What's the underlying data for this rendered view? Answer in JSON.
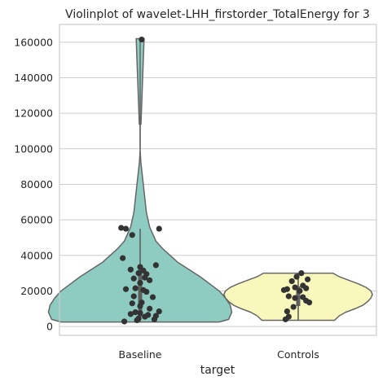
{
  "chart_data": {
    "type": "violin",
    "title": "Violinplot of wavelet-LHH_firstorder_TotalEnergy for 3",
    "xlabel": "target",
    "ylabel": "",
    "ylim": [
      -5000,
      170000
    ],
    "yticks": [
      0,
      20000,
      40000,
      60000,
      80000,
      100000,
      120000,
      140000,
      160000
    ],
    "ytick_labels": [
      "0",
      "20000",
      "40000",
      "60000",
      "80000",
      "100000",
      "120000",
      "140000",
      "160000"
    ],
    "grid": true,
    "categories": [
      "Baseline",
      "Controls"
    ],
    "series": [
      {
        "name": "Baseline",
        "color": "#8ecbc0",
        "range": [
          2500,
          162000
        ],
        "box": {
          "q1": 5500,
          "q3": 33000,
          "whisker_low": 2500,
          "whisker_high": 55000,
          "median": 19000
        },
        "density": [
          [
            2500,
            0.5
          ],
          [
            4000,
            0.56
          ],
          [
            8000,
            0.58
          ],
          [
            12000,
            0.57
          ],
          [
            16000,
            0.54
          ],
          [
            20000,
            0.5
          ],
          [
            24000,
            0.44
          ],
          [
            28000,
            0.38
          ],
          [
            32000,
            0.31
          ],
          [
            36000,
            0.24
          ],
          [
            40000,
            0.19
          ],
          [
            44000,
            0.14
          ],
          [
            48000,
            0.1
          ],
          [
            52000,
            0.08
          ],
          [
            56000,
            0.06
          ],
          [
            60000,
            0.05
          ],
          [
            64000,
            0.04
          ],
          [
            68000,
            0.035
          ],
          [
            72000,
            0.03
          ],
          [
            76000,
            0.025
          ],
          [
            80000,
            0.02
          ],
          [
            84000,
            0.015
          ],
          [
            88000,
            0.01
          ],
          [
            92000,
            0.005
          ],
          [
            96000,
            0.002
          ],
          [
            100000,
            0
          ],
          [
            162000,
            0
          ]
        ],
        "top_cap": {
          "value": 162000,
          "half_width": 0.025
        },
        "points": [
          [
            0.01,
            161500
          ],
          [
            -0.12,
            55500
          ],
          [
            -0.09,
            55000
          ],
          [
            0.12,
            55000
          ],
          [
            -0.05,
            51500
          ],
          [
            -0.11,
            38500
          ],
          [
            0.1,
            34500
          ],
          [
            0.0,
            33500
          ],
          [
            -0.06,
            32000
          ],
          [
            0.02,
            31500
          ],
          [
            -0.01,
            30000
          ],
          [
            0.04,
            29500
          ],
          [
            0.03,
            27500
          ],
          [
            -0.04,
            27000
          ],
          [
            0.06,
            26000
          ],
          [
            0.0,
            24500
          ],
          [
            -0.09,
            21000
          ],
          [
            -0.03,
            21500
          ],
          [
            0.02,
            20500
          ],
          [
            0.04,
            19500
          ],
          [
            -0.04,
            17000
          ],
          [
            0.08,
            16500
          ],
          [
            0.01,
            13500
          ],
          [
            -0.05,
            13000
          ],
          [
            0.0,
            11500
          ],
          [
            0.06,
            10000
          ],
          [
            -0.03,
            8000
          ],
          [
            0.12,
            8500
          ],
          [
            0.0,
            7500
          ],
          [
            -0.06,
            7000
          ],
          [
            0.05,
            6500
          ],
          [
            0.1,
            6000
          ],
          [
            0.03,
            5500
          ],
          [
            -0.01,
            4500
          ],
          [
            0.09,
            4000
          ],
          [
            -0.02,
            3500
          ],
          [
            -0.1,
            2800
          ]
        ]
      },
      {
        "name": "Controls",
        "color": "#f8f8bd",
        "range": [
          3500,
          30000
        ],
        "box": {
          "q1": 11500,
          "q3": 22500,
          "whisker_low": 3500,
          "whisker_high": 30000,
          "median": 18500
        },
        "density": [
          [
            3500,
            0.23
          ],
          [
            6000,
            0.26
          ],
          [
            8000,
            0.3
          ],
          [
            10000,
            0.36
          ],
          [
            12000,
            0.41
          ],
          [
            14000,
            0.44
          ],
          [
            16000,
            0.46
          ],
          [
            18000,
            0.47
          ],
          [
            20000,
            0.46
          ],
          [
            22000,
            0.43
          ],
          [
            24000,
            0.38
          ],
          [
            26000,
            0.32
          ],
          [
            28000,
            0.26
          ],
          [
            30000,
            0.22
          ]
        ],
        "points": [
          [
            0.02,
            30000
          ],
          [
            -0.01,
            28000
          ],
          [
            0.06,
            26500
          ],
          [
            -0.04,
            25500
          ],
          [
            0.03,
            23000
          ],
          [
            -0.02,
            22000
          ],
          [
            0.05,
            21500
          ],
          [
            -0.07,
            21000
          ],
          [
            -0.09,
            20500
          ],
          [
            0.01,
            20000
          ],
          [
            -0.06,
            17000
          ],
          [
            0.03,
            16500
          ],
          [
            -0.02,
            16000
          ],
          [
            0.05,
            14500
          ],
          [
            0.07,
            13500
          ],
          [
            -0.03,
            11000
          ],
          [
            -0.07,
            8500
          ],
          [
            -0.06,
            5500
          ],
          [
            -0.08,
            4000
          ]
        ]
      }
    ]
  }
}
